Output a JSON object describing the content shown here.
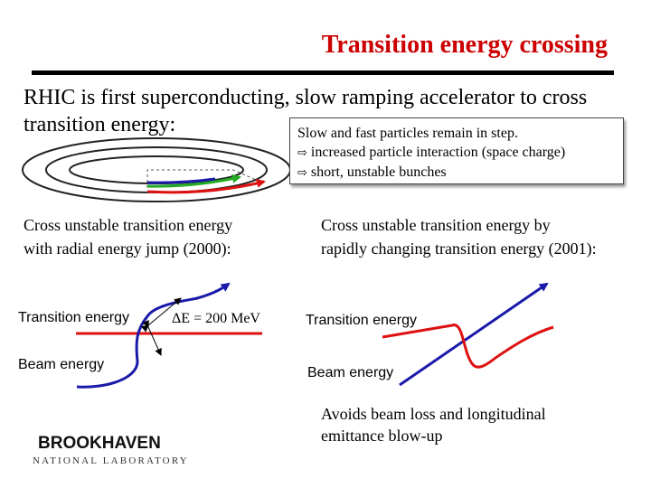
{
  "title": "Transition energy crossing",
  "intro": {
    "line1": "RHIC is first superconducting, slow ramping accelerator to cross",
    "line2": "transition energy:"
  },
  "note": {
    "line1": "Slow and fast particles remain in step.",
    "line2": "increased particle interaction (space charge)",
    "line3": "short, unstable bunches",
    "arrow_icon": "hollow-right-arrow"
  },
  "left_panel": {
    "caption_line1": "Cross unstable transition energy",
    "caption_line2": "with radial energy jump (2000):",
    "transition_label": "Transition energy",
    "beam_label": "Beam energy",
    "delta_label": "ΔE = 200 MeV"
  },
  "right_panel": {
    "caption_line1": "Cross unstable transition energy by",
    "caption_line2": "rapidly changing transition energy (2001):",
    "transition_label": "Transition energy",
    "beam_label": "Beam energy",
    "result_line1": "Avoids beam loss and longitudinal",
    "result_line2": "emittance blow-up"
  },
  "logo": {
    "name": "BROOKHAVEN",
    "subtitle": "NATIONAL LABORATORY"
  },
  "colors": {
    "title": "#cc0000",
    "transition_curve": "#dd1111",
    "beam_curve": "#1a1aaa",
    "fast_particle_track": "#22aa22"
  }
}
